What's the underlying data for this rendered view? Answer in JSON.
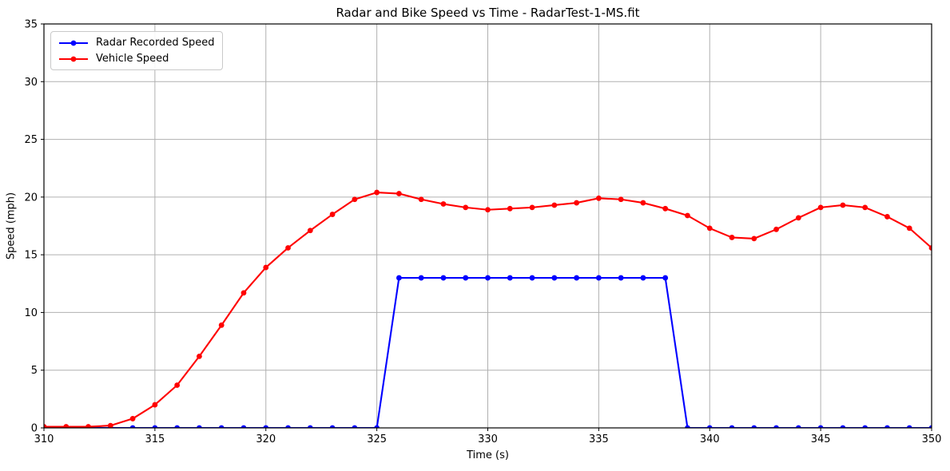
{
  "chart_data": {
    "type": "line",
    "title": "Radar and Bike Speed vs Time - RadarTest-1-MS.fit",
    "xlabel": "Time (s)",
    "ylabel": "Speed (mph)",
    "xlim": [
      310,
      350
    ],
    "ylim": [
      0,
      35
    ],
    "xticks": [
      310,
      315,
      320,
      325,
      330,
      335,
      340,
      345,
      350
    ],
    "yticks": [
      0,
      5,
      10,
      15,
      20,
      25,
      30,
      35
    ],
    "grid": true,
    "grid_color": "#b0b0b0",
    "legend_position": "upper-left",
    "x": [
      310,
      311,
      312,
      313,
      314,
      315,
      316,
      317,
      318,
      319,
      320,
      321,
      322,
      323,
      324,
      325,
      326,
      327,
      328,
      329,
      330,
      331,
      332,
      333,
      334,
      335,
      336,
      337,
      338,
      339,
      340,
      341,
      342,
      343,
      344,
      345,
      346,
      347,
      348,
      349,
      350
    ],
    "series": [
      {
        "name": "Radar Recorded Speed",
        "color": "#0000ff",
        "marker": "circle",
        "values": [
          0,
          0,
          0,
          0,
          0,
          0,
          0,
          0,
          0,
          0,
          0,
          0,
          0,
          0,
          0,
          0,
          13,
          13,
          13,
          13,
          13,
          13,
          13,
          13,
          13,
          13,
          13,
          13,
          13,
          0,
          0,
          0,
          0,
          0,
          0,
          0,
          0,
          0,
          0,
          0,
          0
        ]
      },
      {
        "name": "Vehicle Speed",
        "color": "#ff0000",
        "marker": "circle",
        "values": [
          0.1,
          0.1,
          0.1,
          0.2,
          0.8,
          2.0,
          3.7,
          6.2,
          8.9,
          11.7,
          13.9,
          15.6,
          17.1,
          18.5,
          19.8,
          20.4,
          20.3,
          19.8,
          19.4,
          19.1,
          18.9,
          19.0,
          19.1,
          19.3,
          19.5,
          19.9,
          19.8,
          19.5,
          19.0,
          18.4,
          17.3,
          16.5,
          16.4,
          17.2,
          18.2,
          19.1,
          19.3,
          19.1,
          18.3,
          17.3,
          15.6
        ]
      }
    ]
  }
}
